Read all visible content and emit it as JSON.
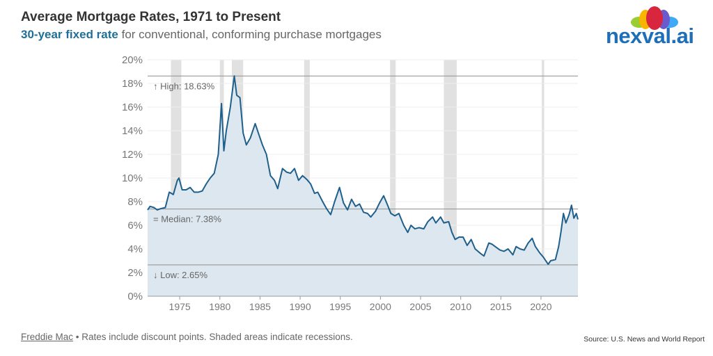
{
  "header": {
    "title": "Average Mortgage Rates, 1971 to Present",
    "subtitle_bold": "30-year fixed rate",
    "subtitle_rest": " for conventional, conforming purchase mortgages"
  },
  "logo": {
    "text": "nexval.ai"
  },
  "footer": {
    "link": "Freddie Mac",
    "note": " • Rates include discount points. Shaded areas indicate recessions.",
    "source": "Source: U.S. News and World Report"
  },
  "colors": {
    "line": "#1f5f8b",
    "fill": "#dde7ef",
    "recession": "#d4d4d4",
    "refline": "#999999"
  },
  "chart_data": {
    "type": "area",
    "title": "Average Mortgage Rates, 1971 to Present",
    "xlim": [
      1971,
      2024.6
    ],
    "ylim": [
      0,
      20
    ],
    "xticks": [
      1975,
      1980,
      1985,
      1990,
      1995,
      2000,
      2005,
      2010,
      2015,
      2020
    ],
    "yticks": [
      0,
      2,
      4,
      6,
      8,
      10,
      12,
      14,
      16,
      18,
      20
    ],
    "ytick_labels": [
      "0%",
      "2%",
      "4%",
      "6%",
      "8%",
      "10%",
      "12%",
      "14%",
      "16%",
      "18%",
      "20%"
    ],
    "grid": true,
    "reference_lines": [
      {
        "label": "↑ High: 18.63%",
        "value": 18.63
      },
      {
        "label": "= Median: 7.38%",
        "value": 7.38
      },
      {
        "label": "↓ Low: 2.65%",
        "value": 2.65
      }
    ],
    "recessions": [
      [
        1973.9,
        1975.2
      ],
      [
        1980.0,
        1980.5
      ],
      [
        1981.5,
        1982.9
      ],
      [
        1990.5,
        1991.2
      ],
      [
        2001.2,
        2001.9
      ],
      [
        2007.9,
        2009.5
      ],
      [
        2020.1,
        2020.4
      ]
    ],
    "series": [
      {
        "name": "30-year fixed rate",
        "x": [
          1971.0,
          1971.3,
          1971.8,
          1972.2,
          1972.6,
          1973.2,
          1973.7,
          1974.2,
          1974.7,
          1974.9,
          1975.3,
          1975.8,
          1976.3,
          1976.8,
          1977.3,
          1977.8,
          1978.3,
          1978.8,
          1979.3,
          1979.8,
          1980.2,
          1980.5,
          1980.8,
          1981.3,
          1981.8,
          1982.1,
          1982.5,
          1982.9,
          1983.3,
          1983.8,
          1984.4,
          1984.8,
          1985.3,
          1985.8,
          1986.3,
          1986.8,
          1987.2,
          1987.8,
          1988.3,
          1988.8,
          1989.3,
          1989.8,
          1990.3,
          1990.8,
          1991.3,
          1991.8,
          1992.2,
          1992.8,
          1993.3,
          1993.8,
          1994.3,
          1994.9,
          1995.4,
          1995.9,
          1996.4,
          1996.9,
          1997.4,
          1997.9,
          1998.4,
          1998.8,
          1999.4,
          1999.9,
          2000.4,
          2000.9,
          2001.3,
          2001.8,
          2002.3,
          2002.9,
          2003.4,
          2003.8,
          2004.3,
          2004.8,
          2005.4,
          2005.9,
          2006.5,
          2006.9,
          2007.5,
          2007.9,
          2008.5,
          2008.9,
          2009.3,
          2009.8,
          2010.3,
          2010.8,
          2011.3,
          2011.8,
          2012.5,
          2012.9,
          2013.5,
          2013.9,
          2014.5,
          2014.9,
          2015.4,
          2015.9,
          2016.5,
          2016.9,
          2017.4,
          2017.9,
          2018.4,
          2018.9,
          2019.3,
          2019.8,
          2020.3,
          2020.9,
          2021.2,
          2021.8,
          2022.2,
          2022.5,
          2022.8,
          2023.1,
          2023.5,
          2023.8,
          2024.1,
          2024.4,
          2024.6
        ],
        "values": [
          7.3,
          7.6,
          7.5,
          7.3,
          7.4,
          7.5,
          8.8,
          8.6,
          9.8,
          10.0,
          9.0,
          9.0,
          9.2,
          8.8,
          8.8,
          8.9,
          9.5,
          10.0,
          10.4,
          12.0,
          16.3,
          12.3,
          14.0,
          16.0,
          18.63,
          17.0,
          16.8,
          13.8,
          12.8,
          13.4,
          14.6,
          13.8,
          12.8,
          12.0,
          10.2,
          9.8,
          9.1,
          10.8,
          10.5,
          10.4,
          10.8,
          9.8,
          10.2,
          9.9,
          9.5,
          8.7,
          8.8,
          8.0,
          7.4,
          6.9,
          8.0,
          9.2,
          7.9,
          7.3,
          8.2,
          7.6,
          7.8,
          7.1,
          7.0,
          6.7,
          7.2,
          7.9,
          8.5,
          7.7,
          7.0,
          6.8,
          7.0,
          6.0,
          5.4,
          6.0,
          5.7,
          5.8,
          5.7,
          6.3,
          6.7,
          6.2,
          6.7,
          6.2,
          6.3,
          5.4,
          4.8,
          5.0,
          5.0,
          4.3,
          4.8,
          4.0,
          3.6,
          3.4,
          4.5,
          4.4,
          4.1,
          3.9,
          3.8,
          4.0,
          3.5,
          4.2,
          4.0,
          3.9,
          4.5,
          4.9,
          4.2,
          3.7,
          3.3,
          2.7,
          3.0,
          3.1,
          4.2,
          5.5,
          7.0,
          6.2,
          6.9,
          7.7,
          6.6,
          7.0,
          6.5
        ]
      }
    ]
  }
}
